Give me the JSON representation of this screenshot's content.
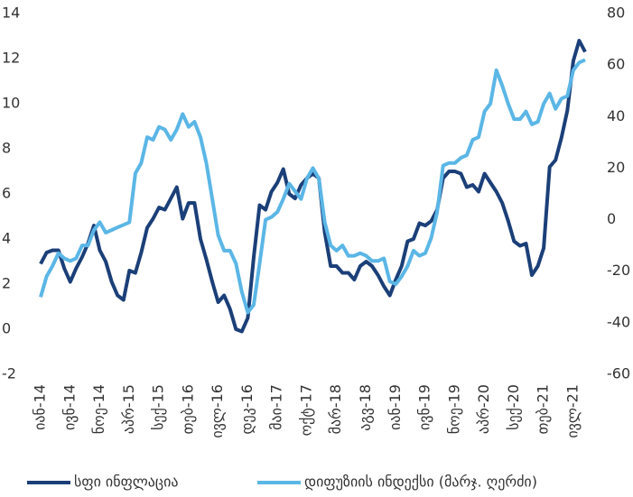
{
  "chart_data": {
    "type": "line",
    "categories": [
      "იან-14",
      null,
      null,
      null,
      null,
      "ივნ-14",
      null,
      null,
      null,
      null,
      "ნოე-14",
      null,
      null,
      null,
      null,
      "აპრ-15",
      null,
      null,
      null,
      null,
      "სექ-15",
      null,
      null,
      null,
      null,
      "თებ-16",
      null,
      null,
      null,
      null,
      "ივლ-16",
      null,
      null,
      null,
      null,
      "დეკ-16",
      null,
      null,
      null,
      null,
      "მაი-17",
      null,
      null,
      null,
      null,
      "ოქტ-17",
      null,
      null,
      null,
      null,
      "მარ-18",
      null,
      null,
      null,
      null,
      "აგვ-18",
      null,
      null,
      null,
      null,
      "იან-19",
      null,
      null,
      null,
      null,
      "ივნ-19",
      null,
      null,
      null,
      null,
      "ნოე-19",
      null,
      null,
      null,
      null,
      "აპრ-20",
      null,
      null,
      null,
      null,
      "სექ-20",
      null,
      null,
      null,
      null,
      "თებ-21",
      null,
      null,
      null,
      null,
      "ივლ-21",
      null,
      null
    ],
    "series": [
      {
        "name": "სფი ინფლაცია",
        "color": "#1b3f78",
        "values": [
          2.9,
          3.4,
          3.5,
          3.5,
          2.7,
          2.1,
          2.7,
          3.2,
          3.8,
          4.6,
          3.5,
          3.0,
          2.1,
          1.5,
          1.3,
          2.6,
          2.5,
          3.4,
          4.5,
          4.9,
          5.4,
          5.3,
          5.8,
          6.3,
          4.9,
          5.6,
          5.6,
          4.0,
          3.1,
          2.1,
          1.2,
          1.5,
          0.9,
          0.0,
          -0.1,
          0.5,
          3.2,
          5.5,
          5.3,
          6.1,
          6.5,
          7.1,
          6.0,
          5.8,
          6.4,
          6.7,
          6.9,
          6.7,
          4.3,
          2.8,
          2.8,
          2.5,
          2.5,
          2.2,
          2.8,
          3.0,
          2.8,
          2.4,
          1.9,
          1.5,
          2.2,
          2.8,
          3.9,
          4.0,
          4.7,
          4.6,
          4.8,
          5.3,
          6.7,
          7.0,
          7.0,
          6.9,
          6.3,
          6.4,
          6.1,
          6.9,
          6.5,
          6.1,
          5.6,
          4.8,
          3.9,
          3.7,
          3.8,
          2.4,
          2.8,
          3.6,
          7.2,
          7.5,
          8.5,
          9.7,
          11.9,
          12.8,
          12.3
        ]
      },
      {
        "name": "დიფუზიის ინდექსი (მარჯ. ღერძი)",
        "color": "#5bb6e6",
        "axis": "y2",
        "values": [
          -30,
          -22,
          -18,
          -13,
          -15,
          -16,
          -15,
          -10,
          -10,
          -4,
          -1,
          -5,
          -4,
          -3,
          -2,
          -1,
          18,
          22,
          32,
          31,
          36,
          35,
          31,
          35,
          41,
          36,
          38,
          32,
          22,
          8,
          -6,
          -12,
          -12,
          -17,
          -28,
          -36,
          -33,
          -17,
          0,
          1,
          3,
          8,
          14,
          11,
          8,
          16,
          20,
          16,
          -1,
          -10,
          -12,
          -10,
          -14,
          -14,
          -13,
          -14,
          -16,
          -16,
          -15,
          -24,
          -25,
          -22,
          -18,
          -12,
          -14,
          -13,
          -7,
          3,
          21,
          22,
          22,
          24,
          25,
          31,
          32,
          42,
          45,
          58,
          52,
          45,
          39,
          39,
          42,
          37,
          38,
          45,
          49,
          43,
          47,
          48,
          58,
          61,
          62
        ]
      }
    ],
    "ylim": [
      -2,
      14
    ],
    "yticks": [
      -2,
      0,
      2,
      4,
      6,
      8,
      10,
      12,
      14
    ],
    "y2lim": [
      -60,
      80
    ],
    "y2ticks": [
      -60,
      -40,
      -20,
      0,
      20,
      40,
      60,
      80
    ],
    "legend": "bottom"
  }
}
